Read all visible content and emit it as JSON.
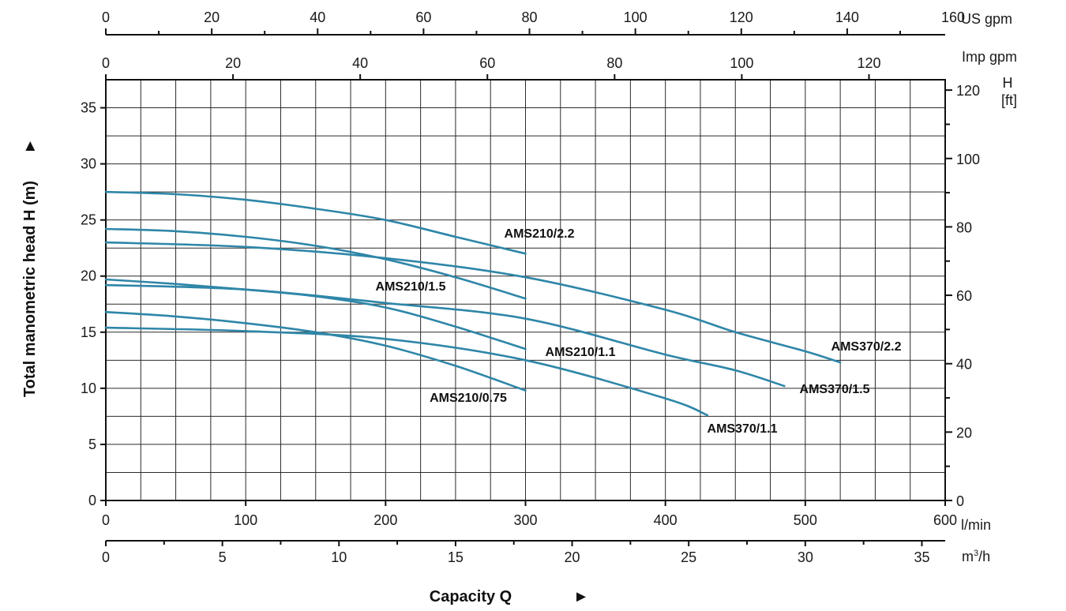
{
  "chart_data": {
    "type": "line",
    "title": "",
    "xlabel": "Capacity Q",
    "ylabel": "Total manometric head H (m)",
    "xlabel_arrow": "►",
    "ylabel_arrow": "►",
    "xlim": [
      0,
      600
    ],
    "ylim": [
      0,
      37.5
    ],
    "grid": true,
    "curve_color": "#2e86a8",
    "x_unit": "l/min",
    "y_unit": "m",
    "x_ticks": [
      "0",
      "100",
      "200",
      "300",
      "400",
      "500",
      "600"
    ],
    "y_ticks": [
      "0",
      "5",
      "10",
      "15",
      "20",
      "25",
      "30",
      "35"
    ],
    "secondary_axes": {
      "m3h": {
        "unit": "m³/h",
        "unit_base": "m",
        "unit_sup": "3",
        "unit_tail": "/h",
        "ticks": [
          "0",
          "5",
          "10",
          "15",
          "20",
          "25",
          "30",
          "35"
        ],
        "tick_values": [
          0,
          5,
          10,
          15,
          20,
          25,
          30,
          35
        ]
      },
      "us_gpm": {
        "unit": "US gpm",
        "ticks": [
          "0",
          "20",
          "40",
          "60",
          "80",
          "100",
          "120",
          "140",
          "160"
        ],
        "tick_values": [
          0,
          20,
          40,
          60,
          80,
          100,
          120,
          140,
          160
        ]
      },
      "imp_gpm": {
        "unit": "Imp gpm",
        "ticks": [
          "0",
          "20",
          "40",
          "60",
          "80",
          "100",
          "120"
        ],
        "tick_values": [
          0,
          20,
          40,
          60,
          80,
          100,
          120
        ]
      },
      "head_ft": {
        "unit_top": "H",
        "unit_bottom": "[ft]",
        "ticks": [
          "0",
          "20",
          "40",
          "60",
          "80",
          "100",
          "120"
        ],
        "tick_values": [
          0,
          20,
          40,
          60,
          80,
          100,
          120
        ]
      }
    },
    "series": [
      {
        "name": "AMS210/2.2",
        "x": [
          0,
          50,
          100,
          150,
          200,
          250,
          300
        ],
        "y": [
          27.5,
          27.3,
          26.8,
          26.0,
          25.0,
          23.5,
          22.0
        ]
      },
      {
        "name": "AMS210/1.5",
        "x": [
          0,
          50,
          100,
          150,
          200,
          250,
          300
        ],
        "y": [
          24.2,
          24.0,
          23.5,
          22.7,
          21.5,
          19.9,
          18.0
        ]
      },
      {
        "name": "AMS210/1.1",
        "x": [
          0,
          50,
          100,
          150,
          200,
          250,
          300
        ],
        "y": [
          19.7,
          19.3,
          18.8,
          18.2,
          17.2,
          15.5,
          13.5
        ]
      },
      {
        "name": "AMS210/0.75",
        "x": [
          0,
          50,
          100,
          150,
          200,
          250,
          300
        ],
        "y": [
          16.8,
          16.4,
          15.8,
          15.0,
          13.8,
          12.0,
          9.8
        ]
      },
      {
        "name": "AMS370/2.2",
        "x": [
          0,
          100,
          200,
          300,
          400,
          450,
          500,
          525
        ],
        "y": [
          23.0,
          22.6,
          21.6,
          19.9,
          17.0,
          15.0,
          13.3,
          12.3
        ]
      },
      {
        "name": "AMS370/1.5",
        "x": [
          0,
          100,
          200,
          300,
          400,
          450,
          485
        ],
        "y": [
          19.2,
          18.8,
          17.6,
          16.2,
          13.0,
          11.6,
          10.2
        ]
      },
      {
        "name": "AMS370/1.1",
        "x": [
          0,
          100,
          200,
          300,
          400,
          430
        ],
        "y": [
          15.4,
          15.1,
          14.4,
          12.5,
          9.1,
          7.6
        ]
      }
    ]
  }
}
